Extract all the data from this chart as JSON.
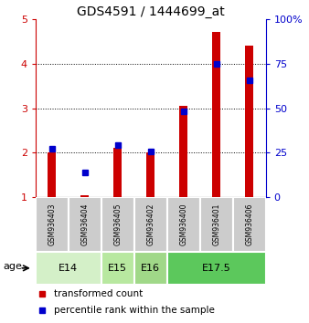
{
  "title": "GDS4591 / 1444699_at",
  "samples": [
    "GSM936403",
    "GSM936404",
    "GSM936405",
    "GSM936402",
    "GSM936400",
    "GSM936401",
    "GSM936406"
  ],
  "red_values": [
    2.0,
    1.05,
    2.1,
    2.0,
    3.05,
    4.72,
    4.4
  ],
  "blue_values": [
    2.08,
    1.55,
    2.18,
    2.03,
    2.93,
    4.0,
    3.62
  ],
  "left_ylim": [
    1,
    5
  ],
  "left_yticks": [
    1,
    2,
    3,
    4,
    5
  ],
  "right_ylim": [
    0,
    100
  ],
  "right_yticks": [
    0,
    25,
    50,
    75,
    100
  ],
  "right_yticklabels": [
    "0",
    "25",
    "50",
    "75",
    "100%"
  ],
  "age_groups": [
    {
      "label": "E14",
      "start": 0,
      "end": 2,
      "color": "#d4f0c8"
    },
    {
      "label": "E15",
      "start": 2,
      "end": 3,
      "color": "#b8e8a0"
    },
    {
      "label": "E16",
      "start": 3,
      "end": 4,
      "color": "#a0d888"
    },
    {
      "label": "E17.5",
      "start": 4,
      "end": 7,
      "color": "#5cc85c"
    }
  ],
  "red_color": "#cc0000",
  "blue_color": "#0000cc",
  "legend_red": "transformed count",
  "legend_blue": "percentile rank within the sample",
  "background_color": "#ffffff",
  "sample_box_color": "#cccccc",
  "title_fontsize": 10,
  "tick_fontsize": 8,
  "label_fontsize": 7.5
}
